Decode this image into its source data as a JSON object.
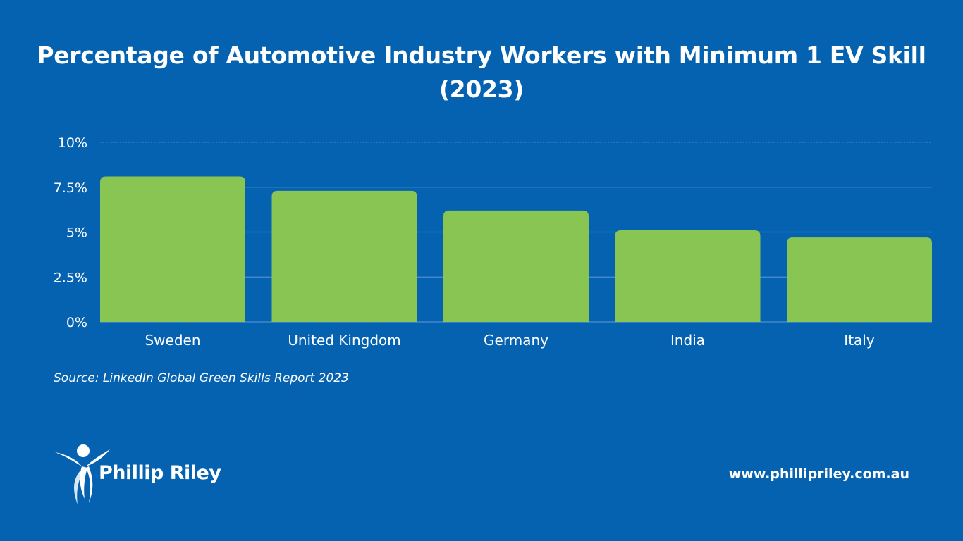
{
  "chart_data": {
    "type": "bar",
    "title_line1": "Percentage of Automotive Industry Workers with Minimum 1 EV Skill",
    "title_line2": "(2023)",
    "categories": [
      "Sweden",
      "United Kingdom",
      "Germany",
      "India",
      "Italy"
    ],
    "values": [
      8.1,
      7.3,
      6.2,
      5.1,
      4.7
    ],
    "ylim": [
      0,
      10
    ],
    "yticks": [
      0,
      2.5,
      5,
      7.5,
      10
    ],
    "ytick_labels": [
      "0%",
      "2.5%",
      "5%",
      "7.5%",
      "10%"
    ],
    "grid": true,
    "bar_color": "#88c553",
    "grid_color": "#4a8fd0",
    "legend": "none"
  },
  "source": "Source: LinkedIn Global Green Skills Report 2023",
  "brand": {
    "name": "Phillip Riley",
    "logo_icon": "figure-icon"
  },
  "website": "www.phillipriley.com.au",
  "colors": {
    "background": "#0562b0",
    "text": "#ffffff"
  }
}
